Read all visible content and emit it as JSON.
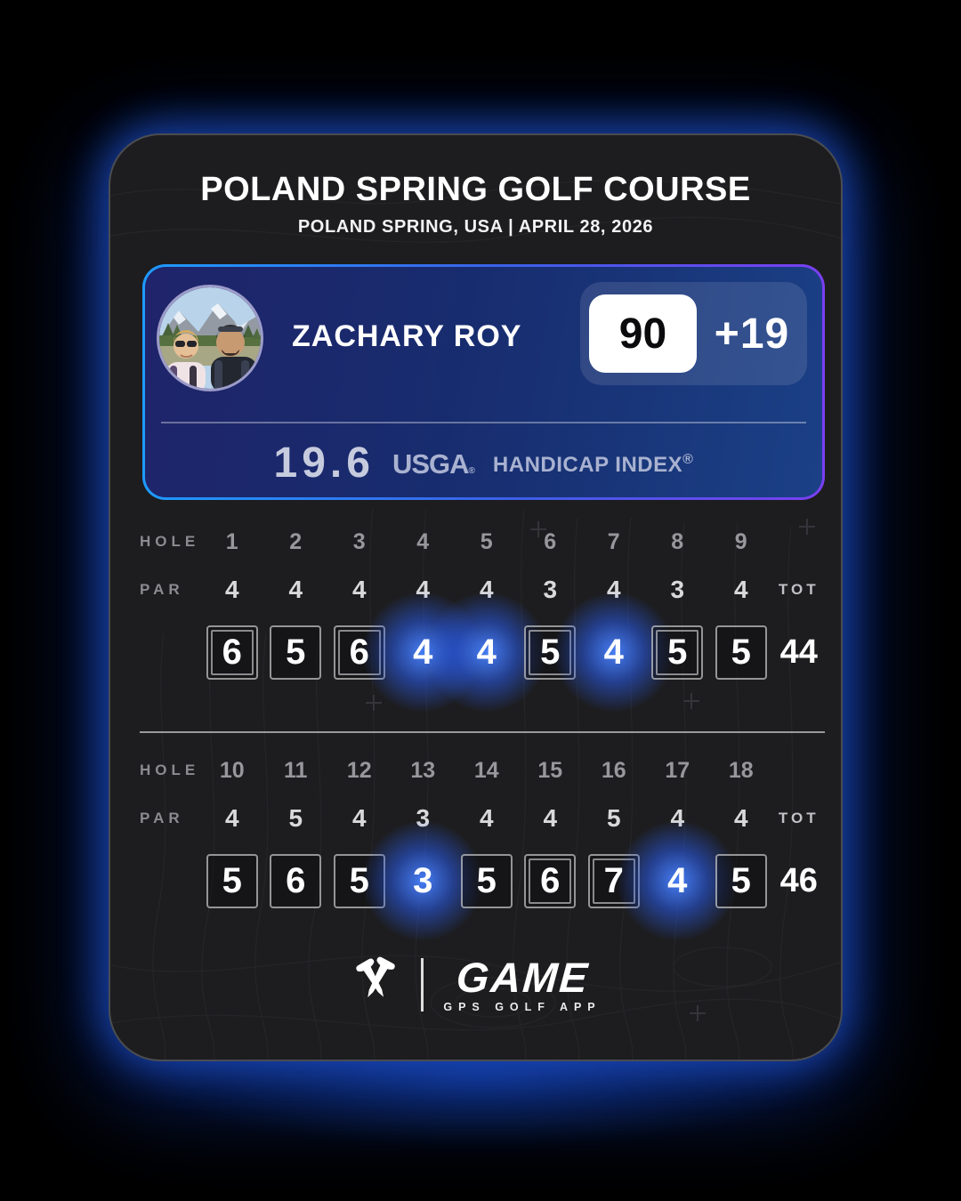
{
  "header": {
    "title": "POLAND SPRING GOLF COURSE",
    "subtitle": "POLAND SPRING, USA | APRIL 28, 2026"
  },
  "player": {
    "name": "ZACHARY ROY",
    "total_score": "90",
    "to_par": "+19",
    "handicap_value": "19.6",
    "usga_brand": "USGA",
    "usga_registered": "®",
    "handicap_label": "HANDICAP INDEX",
    "handicap_registered": "®",
    "avatar_alt": "couple-selfie-mountain-lake"
  },
  "labels": {
    "hole": "HOLE",
    "par": "PAR",
    "tot": "TOT"
  },
  "front_nine": {
    "holes": [
      "1",
      "2",
      "3",
      "4",
      "5",
      "6",
      "7",
      "8",
      "9"
    ],
    "pars": [
      "4",
      "4",
      "4",
      "4",
      "4",
      "3",
      "4",
      "3",
      "4"
    ],
    "scores": [
      {
        "value": "6",
        "box": "double"
      },
      {
        "value": "5",
        "box": "single"
      },
      {
        "value": "6",
        "box": "double"
      },
      {
        "value": "4",
        "box": "glow"
      },
      {
        "value": "4",
        "box": "glow"
      },
      {
        "value": "5",
        "box": "double"
      },
      {
        "value": "4",
        "box": "glow"
      },
      {
        "value": "5",
        "box": "double"
      },
      {
        "value": "5",
        "box": "single"
      }
    ],
    "total": "44"
  },
  "back_nine": {
    "holes": [
      "10",
      "11",
      "12",
      "13",
      "14",
      "15",
      "16",
      "17",
      "18"
    ],
    "pars": [
      "4",
      "5",
      "4",
      "3",
      "4",
      "4",
      "5",
      "4",
      "4"
    ],
    "scores": [
      {
        "value": "5",
        "box": "single"
      },
      {
        "value": "6",
        "box": "single"
      },
      {
        "value": "5",
        "box": "single"
      },
      {
        "value": "3",
        "box": "glow"
      },
      {
        "value": "5",
        "box": "single"
      },
      {
        "value": "6",
        "box": "double"
      },
      {
        "value": "7",
        "box": "double"
      },
      {
        "value": "4",
        "box": "glow"
      },
      {
        "value": "5",
        "box": "single"
      }
    ],
    "total": "46"
  },
  "footer": {
    "brand": "GAME",
    "tagline": "GPS GOLF APP",
    "icon": "crossed-golf-tees-icon"
  },
  "colors": {
    "glow_blue": "#2f6bff",
    "player_border_start": "#1E9BFF",
    "player_border_end": "#7A3FF2",
    "player_bg_left": "#20246a",
    "player_bg_right": "#1b4086",
    "card_bg": "#1d1d1f",
    "score_box_border": "#8e8e91"
  }
}
